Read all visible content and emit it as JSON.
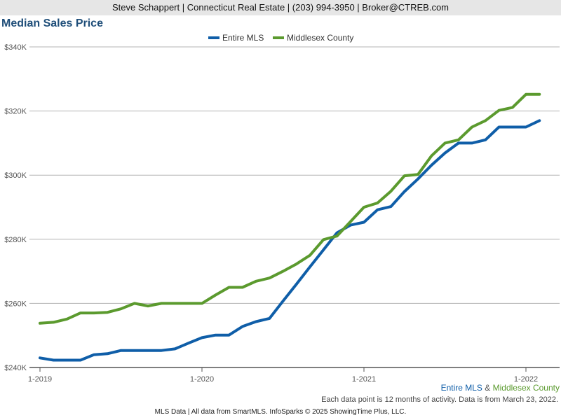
{
  "header": {
    "text": "Steve Schappert | Connecticut Real Estate | (203) 994-3950 | Broker@CTREB.com"
  },
  "colors": {
    "entire_mls": "#0f5ea8",
    "middlesex": "#5b9a2e",
    "grid": "#b3b3b3",
    "title": "#1f4e79"
  },
  "series_note": {
    "a": "Entire MLS",
    "amp": " & ",
    "b": "Middlesex County"
  },
  "footnote": "Each data point is 12 months of activity. Data is from March 23, 2022.",
  "footer": "MLS Data | All data from SmartMLS. InfoSparks © 2025 ShowingTime Plus, LLC.",
  "chart_data": {
    "type": "line",
    "title": "Median Sales Price",
    "xlabel": "",
    "ylabel": "",
    "ylim": [
      240000,
      340000
    ],
    "y_ticks": [
      {
        "value": 240000,
        "label": "$240K"
      },
      {
        "value": 260000,
        "label": "$260K"
      },
      {
        "value": 280000,
        "label": "$280K"
      },
      {
        "value": 300000,
        "label": "$300K"
      },
      {
        "value": 320000,
        "label": "$320K"
      },
      {
        "value": 340000,
        "label": "$340K"
      }
    ],
    "x": [
      "2019-01",
      "2019-02",
      "2019-03",
      "2019-04",
      "2019-05",
      "2019-06",
      "2019-07",
      "2019-08",
      "2019-09",
      "2019-10",
      "2019-11",
      "2019-12",
      "2020-01",
      "2020-02",
      "2020-03",
      "2020-04",
      "2020-05",
      "2020-06",
      "2020-07",
      "2020-08",
      "2020-09",
      "2020-10",
      "2020-11",
      "2020-12",
      "2021-01",
      "2021-02",
      "2021-03",
      "2021-04",
      "2021-05",
      "2021-06",
      "2021-07",
      "2021-08",
      "2021-09",
      "2021-10",
      "2021-11",
      "2021-12",
      "2022-01",
      "2022-02"
    ],
    "x_ticks": [
      {
        "index": 0,
        "label": "1-2019"
      },
      {
        "index": 12,
        "label": "1-2020"
      },
      {
        "index": 24,
        "label": "1-2021"
      },
      {
        "index": 36,
        "label": "1-2022"
      }
    ],
    "grid": true,
    "legend_position": "top-center",
    "series": [
      {
        "name": "Entire MLS",
        "color": "#0f5ea8",
        "values": [
          243000,
          242300,
          242300,
          242300,
          244000,
          244300,
          245300,
          245300,
          245300,
          245300,
          245800,
          247600,
          249300,
          250100,
          250100,
          252800,
          254300,
          255300,
          260700,
          266000,
          271400,
          276700,
          282000,
          284400,
          285300,
          289200,
          290200,
          294900,
          298800,
          303100,
          306900,
          310000,
          310000,
          311000,
          315000,
          315000,
          315000,
          317000
        ]
      },
      {
        "name": "Middlesex County",
        "color": "#5b9a2e",
        "values": [
          253800,
          254100,
          255100,
          257000,
          257000,
          257200,
          258300,
          260000,
          259200,
          260000,
          260000,
          260000,
          260000,
          262600,
          265000,
          265000,
          266900,
          267900,
          270000,
          272300,
          275000,
          279900,
          281000,
          285500,
          290000,
          291300,
          295000,
          299800,
          300200,
          306000,
          310000,
          311000,
          315000,
          317000,
          320200,
          321100,
          325200,
          325200
        ]
      }
    ]
  }
}
